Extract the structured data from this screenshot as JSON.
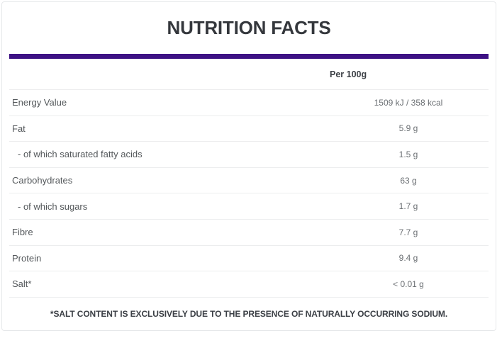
{
  "card": {
    "title": "NUTRITION FACTS",
    "footnote": "*SALT CONTENT IS EXCLUSIVELY DUE TO THE PRESENCE OF NATURALLY OCCURRING SODIUM."
  },
  "table": {
    "value_column_header": "Per 100g",
    "rows": [
      {
        "label": "Energy Value",
        "value": "1509 kJ / 358 kcal",
        "indent": false
      },
      {
        "label": "Fat",
        "value": "5.9 g",
        "indent": false
      },
      {
        "label": "- of which saturated fatty acids",
        "value": "1.5 g",
        "indent": true
      },
      {
        "label": "Carbohydrates",
        "value": "63 g",
        "indent": false
      },
      {
        "label": "- of which sugars",
        "value": "1.7 g",
        "indent": true
      },
      {
        "label": "Fibre",
        "value": "7.7 g",
        "indent": false
      },
      {
        "label": "Protein",
        "value": "9.4 g",
        "indent": false
      },
      {
        "label": "Salt*",
        "value": "< 0.01 g",
        "indent": false
      }
    ]
  },
  "colors": {
    "accent_bar": "#3d1284",
    "title_text": "#34373c",
    "header_text": "#3b3f45",
    "label_text": "#54585b",
    "value_text": "#6b6f73",
    "row_separator": "#ecedee",
    "card_border": "#e6e8ea",
    "card_background": "#ffffff"
  }
}
